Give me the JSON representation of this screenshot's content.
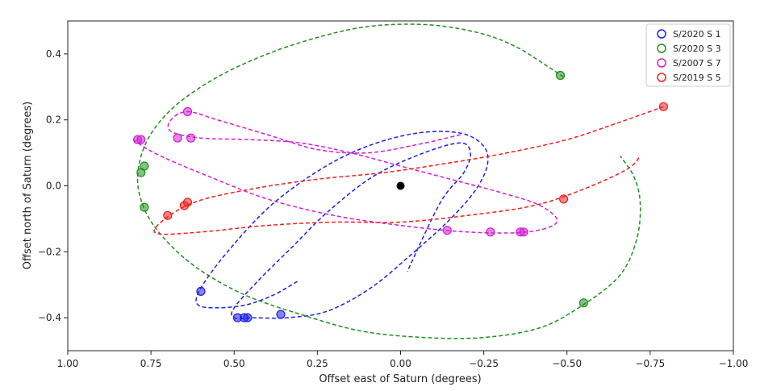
{
  "chart_data": {
    "type": "scatter",
    "title": "",
    "xlabel": "Offset east of Saturn (degrees)",
    "ylabel": "Offset north of Saturn (degrees)",
    "xlim": [
      1.0,
      -1.0
    ],
    "ylim": [
      -0.5,
      0.5
    ],
    "x_ticks": [
      1.0,
      0.75,
      0.5,
      0.25,
      0.0,
      -0.25,
      -0.5,
      -0.75,
      -1.0
    ],
    "x_tick_labels": [
      "1.00",
      "0.75",
      "0.50",
      "0.25",
      "0.00",
      "−0.25",
      "−0.50",
      "−0.75",
      "−1.00"
    ],
    "y_ticks": [
      0.4,
      0.2,
      0.0,
      -0.2,
      -0.4
    ],
    "y_tick_labels": [
      "0.4",
      "0.2",
      "0.0",
      "−0.2",
      "−0.4"
    ],
    "grid": false,
    "legend_position": "top-right",
    "center_marker": {
      "x": 0.0,
      "y": 0.0,
      "color": "#000000"
    },
    "series": [
      {
        "name": "S/2020 S 1",
        "color": "#1f1fe6",
        "points": [
          [
            0.6,
            -0.32
          ],
          [
            0.49,
            -0.4
          ],
          [
            0.47,
            -0.4
          ],
          [
            0.46,
            -0.4
          ],
          [
            0.36,
            -0.39
          ]
        ],
        "orbit": [
          [
            0.31,
            -0.29
          ],
          [
            0.38,
            -0.33
          ],
          [
            0.46,
            -0.36
          ],
          [
            0.55,
            -0.37
          ],
          [
            0.61,
            -0.36
          ],
          [
            0.6,
            -0.31
          ],
          [
            0.52,
            -0.2
          ],
          [
            0.39,
            -0.06
          ],
          [
            0.24,
            0.05
          ],
          [
            0.1,
            0.12
          ],
          [
            -0.05,
            0.16
          ],
          [
            -0.18,
            0.16
          ],
          [
            -0.25,
            0.12
          ],
          [
            -0.26,
            0.06
          ],
          [
            -0.22,
            -0.02
          ],
          [
            -0.14,
            -0.11
          ],
          [
            -0.03,
            -0.21
          ],
          [
            0.09,
            -0.31
          ],
          [
            0.22,
            -0.38
          ],
          [
            0.34,
            -0.4
          ],
          [
            0.44,
            -0.4
          ],
          [
            0.5,
            -0.4
          ],
          [
            0.5,
            -0.37
          ],
          [
            0.43,
            -0.29
          ],
          [
            0.33,
            -0.19
          ],
          [
            0.22,
            -0.08
          ],
          [
            0.08,
            0.03
          ],
          [
            -0.07,
            0.1
          ],
          [
            -0.18,
            0.13
          ],
          [
            -0.21,
            0.1
          ],
          [
            -0.19,
            0.04
          ],
          [
            -0.12,
            -0.05
          ],
          [
            -0.02,
            -0.26
          ]
        ]
      },
      {
        "name": "S/2020 S 3",
        "color": "#1e901e",
        "points": [
          [
            -0.48,
            0.335
          ],
          [
            0.77,
            0.06
          ],
          [
            0.78,
            0.04
          ],
          [
            0.77,
            -0.065
          ],
          [
            -0.55,
            -0.355
          ]
        ],
        "orbit": [
          [
            -0.49,
            0.33
          ],
          [
            -0.43,
            0.37
          ],
          [
            -0.35,
            0.42
          ],
          [
            -0.25,
            0.46
          ],
          [
            -0.12,
            0.485
          ],
          [
            0.0,
            0.49
          ],
          [
            0.12,
            0.48
          ],
          [
            0.25,
            0.45
          ],
          [
            0.4,
            0.4
          ],
          [
            0.55,
            0.33
          ],
          [
            0.68,
            0.24
          ],
          [
            0.76,
            0.14
          ],
          [
            0.79,
            0.03
          ],
          [
            0.77,
            -0.07
          ],
          [
            0.71,
            -0.16
          ],
          [
            0.61,
            -0.25
          ],
          [
            0.47,
            -0.33
          ],
          [
            0.3,
            -0.39
          ],
          [
            0.12,
            -0.44
          ],
          [
            -0.07,
            -0.46
          ],
          [
            -0.25,
            -0.46
          ],
          [
            -0.42,
            -0.43
          ],
          [
            -0.55,
            -0.36
          ],
          [
            -0.66,
            -0.27
          ],
          [
            -0.71,
            -0.16
          ],
          [
            -0.72,
            -0.05
          ],
          [
            -0.7,
            0.03
          ],
          [
            -0.66,
            0.09
          ]
        ]
      },
      {
        "name": "S/2007 S 7",
        "color": "#d020d0",
        "points": [
          [
            0.79,
            0.14
          ],
          [
            0.78,
            0.14
          ],
          [
            0.67,
            0.145
          ],
          [
            0.63,
            0.145
          ],
          [
            0.64,
            0.225
          ],
          [
            -0.14,
            -0.135
          ],
          [
            -0.27,
            -0.14
          ],
          [
            -0.36,
            -0.14
          ],
          [
            -0.37,
            -0.14
          ]
        ],
        "orbit": [
          [
            -0.18,
            0.155
          ],
          [
            -0.05,
            0.125
          ],
          [
            0.1,
            0.1
          ],
          [
            0.25,
            0.11
          ],
          [
            0.4,
            0.155
          ],
          [
            0.55,
            0.2
          ],
          [
            0.64,
            0.225
          ],
          [
            0.69,
            0.2
          ],
          [
            0.69,
            0.165
          ],
          [
            0.6,
            0.145
          ],
          [
            0.45,
            0.14
          ],
          [
            0.3,
            0.13
          ],
          [
            0.15,
            0.1
          ],
          [
            0.0,
            0.06
          ],
          [
            -0.15,
            0.02
          ],
          [
            -0.3,
            -0.02
          ],
          [
            -0.42,
            -0.06
          ],
          [
            -0.47,
            -0.11
          ],
          [
            -0.38,
            -0.14
          ],
          [
            -0.2,
            -0.14
          ],
          [
            0.0,
            -0.12
          ],
          [
            0.2,
            -0.09
          ],
          [
            0.4,
            -0.04
          ],
          [
            0.58,
            0.03
          ],
          [
            0.72,
            0.09
          ],
          [
            0.79,
            0.13
          ],
          [
            0.8,
            0.14
          ]
        ]
      },
      {
        "name": "S/2019 S 5",
        "color": "#ee2020",
        "points": [
          [
            -0.79,
            0.24
          ],
          [
            0.7,
            -0.09
          ],
          [
            0.65,
            -0.06
          ],
          [
            0.64,
            -0.05
          ],
          [
            -0.49,
            -0.04
          ]
        ],
        "orbit": [
          [
            -0.79,
            0.24
          ],
          [
            -0.65,
            0.19
          ],
          [
            -0.5,
            0.14
          ],
          [
            -0.32,
            0.1
          ],
          [
            -0.15,
            0.07
          ],
          [
            0.05,
            0.04
          ],
          [
            0.25,
            0.02
          ],
          [
            0.45,
            -0.01
          ],
          [
            0.62,
            -0.05
          ],
          [
            0.72,
            -0.11
          ],
          [
            0.73,
            -0.145
          ],
          [
            0.6,
            -0.14
          ],
          [
            0.4,
            -0.12
          ],
          [
            0.2,
            -0.11
          ],
          [
            0.0,
            -0.11
          ],
          [
            -0.2,
            -0.09
          ],
          [
            -0.4,
            -0.06
          ],
          [
            -0.55,
            -0.01
          ],
          [
            -0.68,
            0.05
          ],
          [
            -0.72,
            0.09
          ]
        ]
      }
    ]
  }
}
